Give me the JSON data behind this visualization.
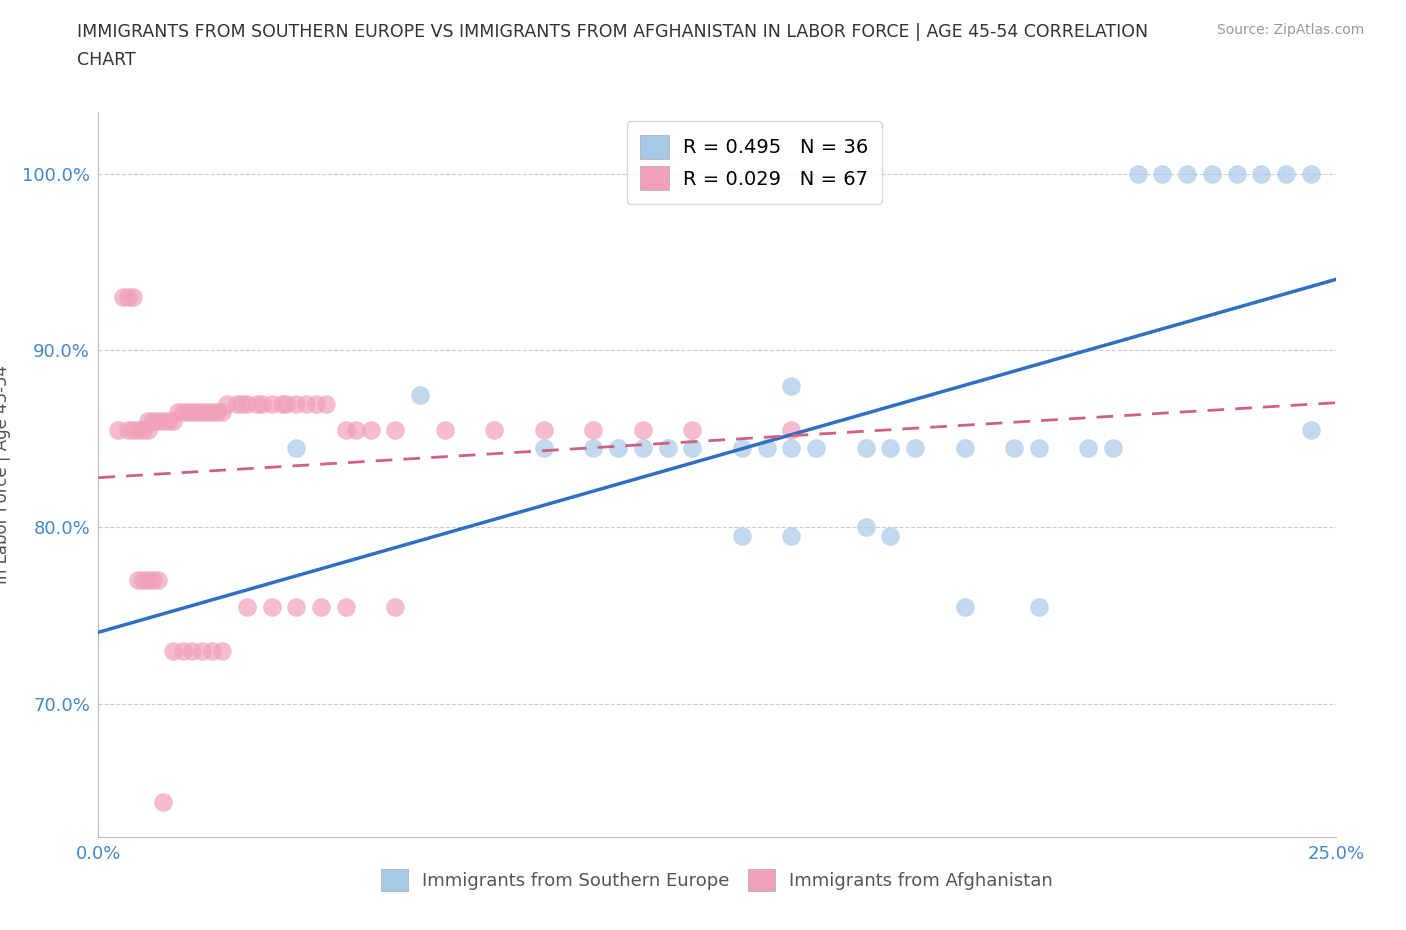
{
  "title_line1": "IMMIGRANTS FROM SOUTHERN EUROPE VS IMMIGRANTS FROM AFGHANISTAN IN LABOR FORCE | AGE 45-54 CORRELATION",
  "title_line2": "CHART",
  "source": "Source: ZipAtlas.com",
  "ylabel": "In Labor Force | Age 45-54",
  "xlim": [
    0.0,
    0.25
  ],
  "ylim": [
    0.625,
    1.035
  ],
  "y_ticks": [
    0.7,
    0.8,
    0.9,
    1.0
  ],
  "y_tick_labels": [
    "70.0%",
    "80.0%",
    "90.0%",
    "100.0%"
  ],
  "x_ticks": [
    0.0,
    0.05,
    0.1,
    0.15,
    0.2,
    0.25
  ],
  "x_tick_labels": [
    "0.0%",
    "",
    "",
    "",
    "",
    "25.0%"
  ],
  "legend_entry1": "R = 0.495   N = 36",
  "legend_entry2": "R = 0.029   N = 67",
  "legend_label1": "Immigrants from Southern Europe",
  "legend_label2": "Immigrants from Afghanistan",
  "color_blue": "#a8c8e8",
  "color_pink": "#f0a0b8",
  "line_blue": "#3070c0",
  "line_pink": "#d06080",
  "background_color": "#ffffff",
  "grid_color": "#cccccc",
  "blue_x": [
    0.04,
    0.065,
    0.09,
    0.1,
    0.105,
    0.11,
    0.115,
    0.12,
    0.13,
    0.135,
    0.14,
    0.145,
    0.155,
    0.16,
    0.165,
    0.175,
    0.185,
    0.19,
    0.2,
    0.205,
    0.21,
    0.215,
    0.22,
    0.225,
    0.23,
    0.235,
    0.24,
    0.245,
    0.175,
    0.19,
    0.13,
    0.14,
    0.155,
    0.16,
    0.14,
    0.245
  ],
  "blue_y": [
    0.845,
    0.875,
    0.845,
    0.845,
    0.845,
    0.845,
    0.845,
    0.845,
    0.845,
    0.845,
    0.845,
    0.845,
    0.845,
    0.845,
    0.845,
    0.845,
    0.845,
    0.845,
    0.845,
    0.845,
    1.0,
    1.0,
    1.0,
    1.0,
    1.0,
    1.0,
    1.0,
    1.0,
    0.755,
    0.755,
    0.795,
    0.795,
    0.8,
    0.795,
    0.88,
    0.855
  ],
  "pink_x": [
    0.004,
    0.006,
    0.007,
    0.008,
    0.009,
    0.01,
    0.01,
    0.011,
    0.012,
    0.013,
    0.014,
    0.015,
    0.016,
    0.017,
    0.018,
    0.019,
    0.02,
    0.021,
    0.022,
    0.023,
    0.024,
    0.025,
    0.026,
    0.028,
    0.029,
    0.03,
    0.032,
    0.033,
    0.035,
    0.037,
    0.038,
    0.04,
    0.042,
    0.044,
    0.046,
    0.05,
    0.052,
    0.055,
    0.06,
    0.07,
    0.08,
    0.09,
    0.1,
    0.11,
    0.12,
    0.14,
    0.005,
    0.006,
    0.007,
    0.008,
    0.009,
    0.01,
    0.011,
    0.012,
    0.013,
    0.015,
    0.017,
    0.019,
    0.021,
    0.023,
    0.025,
    0.03,
    0.035,
    0.04,
    0.045,
    0.05,
    0.06
  ],
  "pink_y": [
    0.855,
    0.855,
    0.855,
    0.855,
    0.855,
    0.855,
    0.86,
    0.86,
    0.86,
    0.86,
    0.86,
    0.86,
    0.865,
    0.865,
    0.865,
    0.865,
    0.865,
    0.865,
    0.865,
    0.865,
    0.865,
    0.865,
    0.87,
    0.87,
    0.87,
    0.87,
    0.87,
    0.87,
    0.87,
    0.87,
    0.87,
    0.87,
    0.87,
    0.87,
    0.87,
    0.855,
    0.855,
    0.855,
    0.855,
    0.855,
    0.855,
    0.855,
    0.855,
    0.855,
    0.855,
    0.855,
    0.93,
    0.93,
    0.93,
    0.77,
    0.77,
    0.77,
    0.77,
    0.77,
    0.645,
    0.73,
    0.73,
    0.73,
    0.73,
    0.73,
    0.73,
    0.755,
    0.755,
    0.755,
    0.755,
    0.755,
    0.755
  ]
}
